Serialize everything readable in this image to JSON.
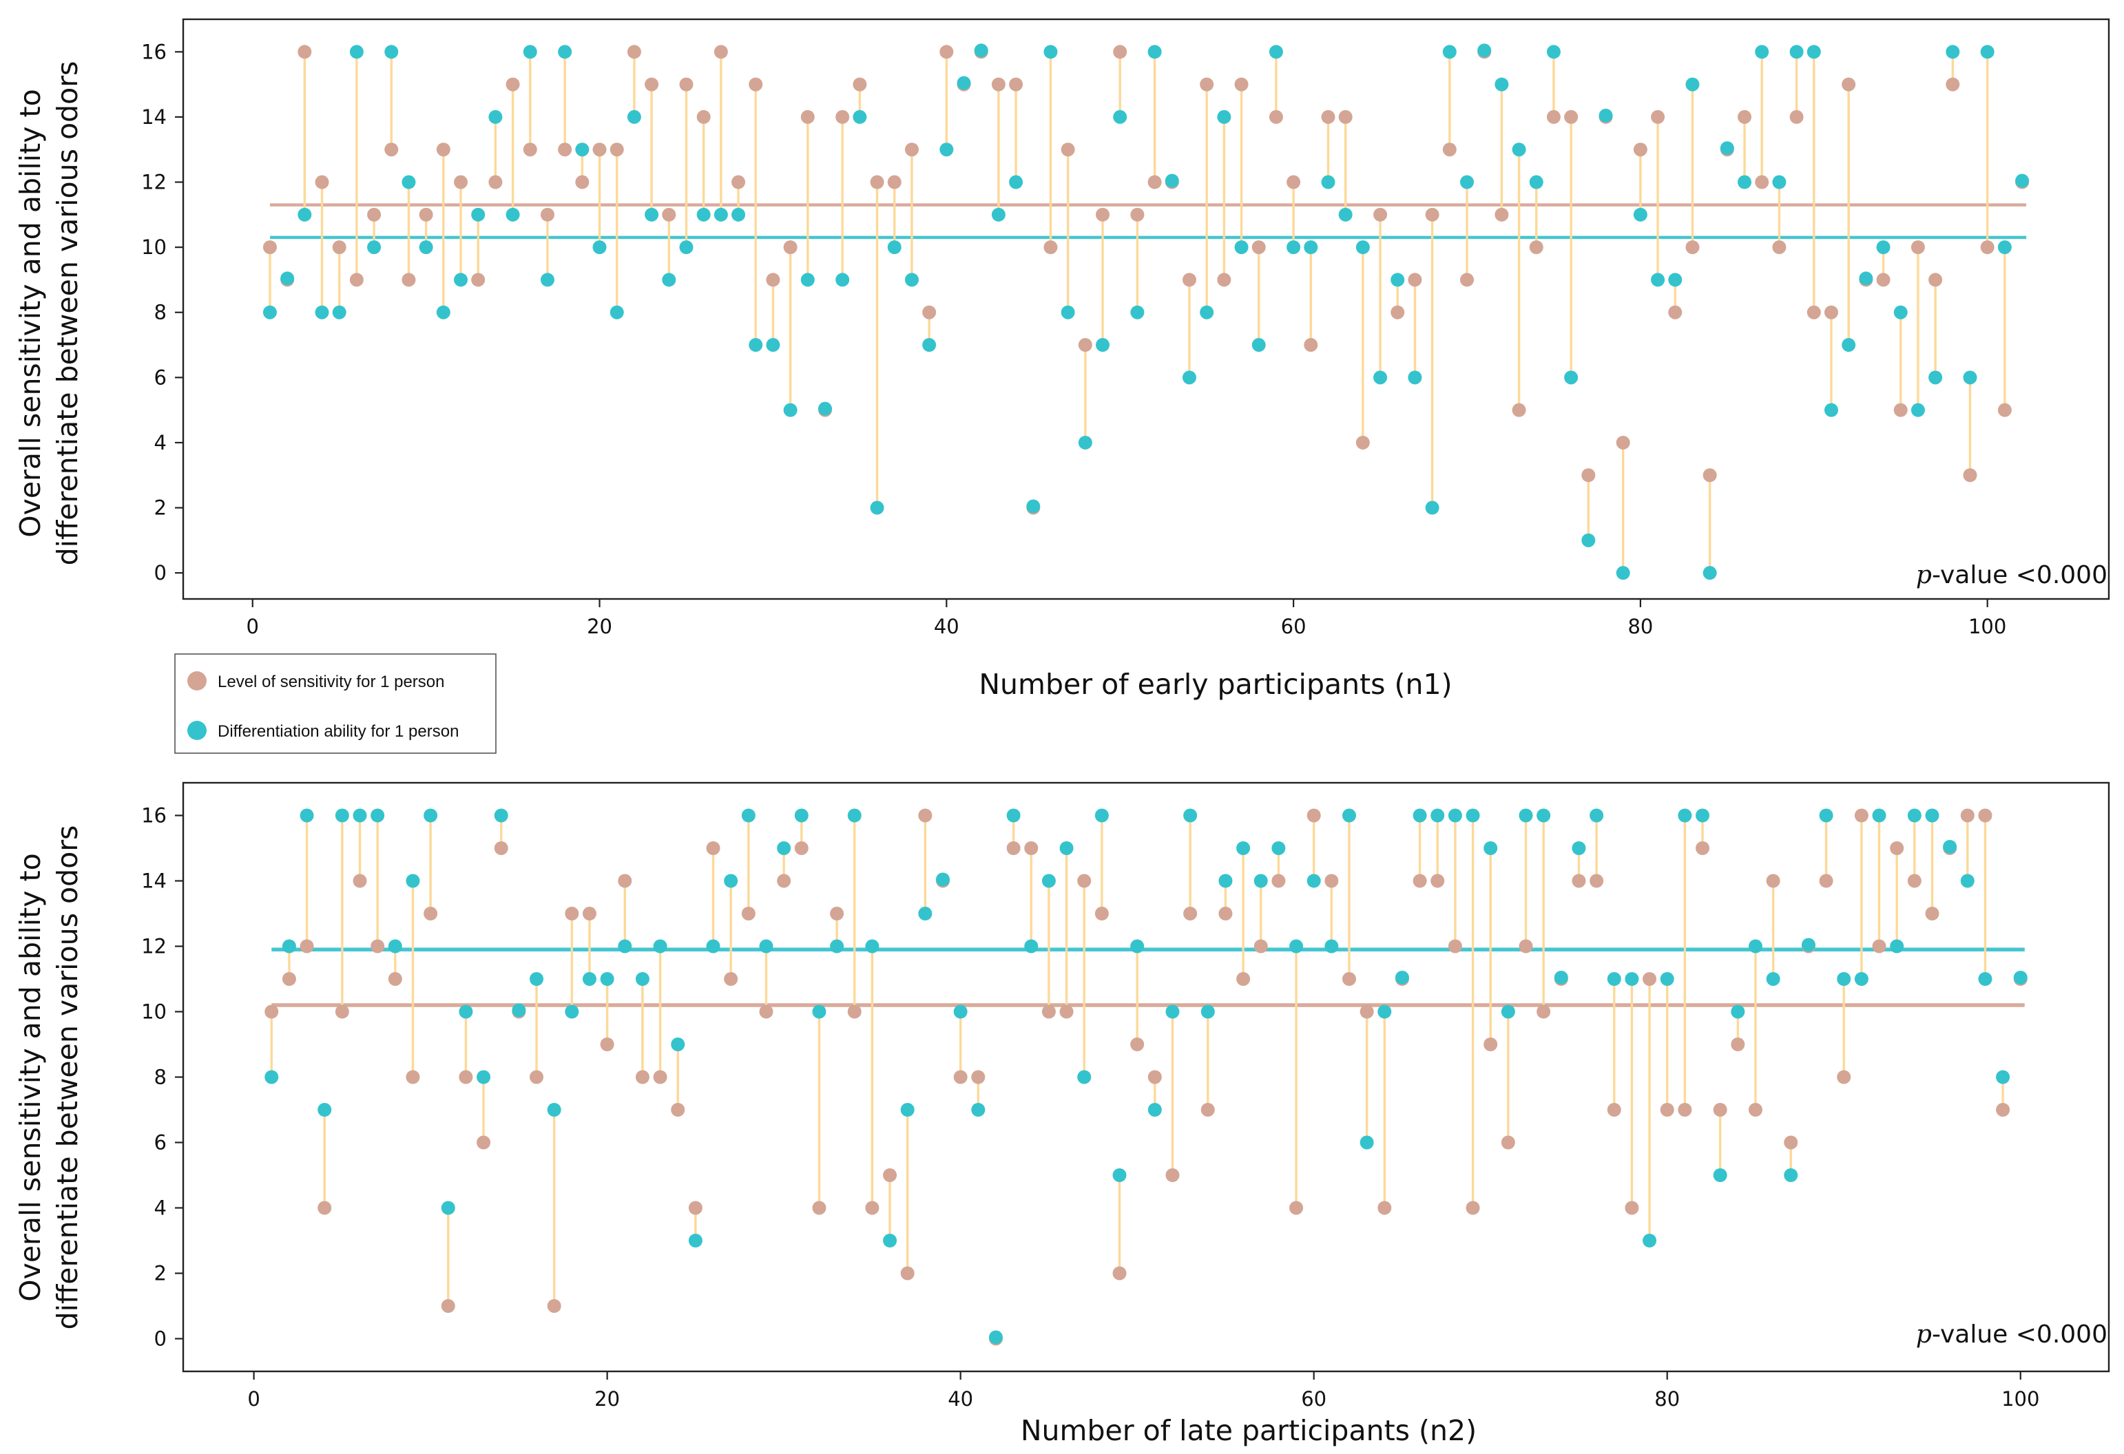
{
  "colors": {
    "sensitivity": "#d4a594",
    "differentiation": "#34c3cc",
    "stem": "#fcd999",
    "sensitivity_mean_line": "#d9aa9b",
    "differentiation_mean_line": "#44c6d0",
    "axis": "#222222"
  },
  "legend": {
    "sensitivity_label": "Level of sensitivity for 1 person",
    "differentiation_label": "Differentiation ability for 1 person"
  },
  "chart_data": [
    {
      "type": "scatter",
      "title": "",
      "xlabel": "Number of early participants (n1)",
      "ylabel_line1": "Overall sensitivity and ability to",
      "ylabel_line2": "differentiate between various odors",
      "annotation_italic": "p",
      "annotation_rest": "-value <0.000",
      "xlim": [
        -4,
        107
      ],
      "ylim": [
        -0.8,
        17
      ],
      "xticks": [
        0,
        20,
        40,
        60,
        80,
        100
      ],
      "yticks": [
        0,
        2,
        4,
        6,
        8,
        10,
        12,
        14,
        16
      ],
      "x": [
        1,
        2,
        3,
        4,
        5,
        6,
        7,
        8,
        9,
        10,
        11,
        12,
        13,
        14,
        15,
        16,
        17,
        18,
        19,
        20,
        21,
        22,
        23,
        24,
        25,
        26,
        27,
        28,
        29,
        30,
        31,
        32,
        33,
        34,
        35,
        36,
        37,
        38,
        39,
        40,
        41,
        42,
        43,
        44,
        45,
        46,
        47,
        48,
        49,
        50,
        51,
        52,
        53,
        54,
        55,
        56,
        57,
        58,
        59,
        60,
        61,
        62,
        63,
        64,
        65,
        66,
        67,
        68,
        69,
        70,
        71,
        72,
        73,
        74,
        75,
        76,
        77,
        78,
        79,
        80,
        81,
        82,
        83,
        84,
        85,
        86,
        87,
        88,
        89,
        90,
        91,
        92,
        93,
        94,
        95,
        96,
        97,
        98,
        99,
        100,
        101,
        102
      ],
      "series": [
        {
          "name": "Level of sensitivity for 1 person",
          "values": [
            10,
            9,
            16,
            12,
            10,
            9,
            11,
            13,
            9,
            11,
            13,
            12,
            9,
            12,
            15,
            13,
            11,
            13,
            12,
            13,
            13,
            16,
            15,
            11,
            15,
            14,
            16,
            12,
            15,
            9,
            10,
            14,
            5,
            14,
            15,
            12,
            12,
            13,
            8,
            16,
            15,
            16,
            15,
            15,
            2,
            10,
            13,
            7,
            11,
            16,
            11,
            12,
            12,
            9,
            15,
            9,
            15,
            10,
            14,
            12,
            7,
            14,
            14,
            4,
            11,
            8,
            9,
            11,
            13,
            9,
            16,
            11,
            5,
            10,
            14,
            14,
            3,
            14,
            4,
            13,
            14,
            8,
            10,
            3,
            13,
            14,
            12,
            10,
            14,
            8,
            8,
            15,
            9,
            9,
            5,
            10,
            9,
            15,
            3,
            10,
            5,
            12
          ]
        },
        {
          "name": "Differentiation ability for 1 person",
          "values": [
            8,
            9,
            11,
            8,
            8,
            16,
            10,
            16,
            12,
            10,
            8,
            9,
            11,
            14,
            11,
            16,
            9,
            16,
            13,
            10,
            8,
            14,
            11,
            9,
            10,
            11,
            11,
            11,
            7,
            7,
            5,
            9,
            5,
            9,
            14,
            2,
            10,
            9,
            7,
            13,
            15,
            16,
            11,
            12,
            2,
            16,
            8,
            4,
            7,
            14,
            8,
            16,
            12,
            6,
            8,
            14,
            10,
            7,
            16,
            10,
            10,
            12,
            11,
            10,
            6,
            9,
            6,
            2,
            16,
            12,
            16,
            15,
            13,
            12,
            16,
            6,
            1,
            14,
            0,
            11,
            9,
            9,
            15,
            0,
            13,
            12,
            16,
            12,
            16,
            16,
            5,
            7,
            9,
            10,
            8,
            5,
            6,
            16,
            6,
            16,
            10,
            12
          ]
        }
      ],
      "mean_lines": {
        "sensitivity": 11.3,
        "differentiation": 10.3
      }
    },
    {
      "type": "scatter",
      "title": "",
      "xlabel": "Number of late participants (n2)",
      "ylabel_line1": "Overall sensitivity and ability to",
      "ylabel_line2": "differentiate between various odors",
      "annotation_italic": "p",
      "annotation_rest": "-value <0.000",
      "xlim": [
        -4,
        105
      ],
      "ylim": [
        -1,
        17
      ],
      "xticks": [
        0,
        20,
        40,
        60,
        80,
        100
      ],
      "yticks": [
        0,
        2,
        4,
        6,
        8,
        10,
        12,
        14,
        16
      ],
      "x": [
        1,
        2,
        3,
        4,
        5,
        6,
        7,
        8,
        9,
        10,
        11,
        12,
        13,
        14,
        15,
        16,
        17,
        18,
        19,
        20,
        21,
        22,
        23,
        24,
        25,
        26,
        27,
        28,
        29,
        30,
        31,
        32,
        33,
        34,
        35,
        36,
        37,
        38,
        39,
        40,
        41,
        42,
        43,
        44,
        45,
        46,
        47,
        48,
        49,
        50,
        51,
        52,
        53,
        54,
        55,
        56,
        57,
        58,
        59,
        60,
        61,
        62,
        63,
        64,
        65,
        66,
        67,
        68,
        69,
        70,
        71,
        72,
        73,
        74,
        75,
        76,
        77,
        78,
        79,
        80,
        81,
        82,
        83,
        84,
        85,
        86,
        87,
        88,
        89,
        90,
        91,
        92,
        93,
        94,
        95,
        96,
        97,
        98,
        99,
        100
      ],
      "series": [
        {
          "name": "Level of sensitivity for 1 person",
          "values": [
            10,
            11,
            12,
            4,
            10,
            14,
            12,
            11,
            8,
            13,
            1,
            8,
            6,
            15,
            10,
            8,
            1,
            13,
            13,
            9,
            14,
            8,
            8,
            7,
            4,
            15,
            11,
            13,
            10,
            14,
            15,
            4,
            13,
            10,
            4,
            5,
            2,
            16,
            14,
            8,
            8,
            0,
            15,
            15,
            10,
            10,
            14,
            13,
            2,
            9,
            8,
            5,
            13,
            7,
            13,
            11,
            12,
            14,
            4,
            16,
            14,
            11,
            10,
            4,
            11,
            14,
            14,
            12,
            4,
            9,
            6,
            12,
            10,
            11,
            14,
            14,
            7,
            4,
            11,
            7,
            7,
            15,
            7,
            9,
            7,
            14,
            6,
            12,
            14,
            8,
            16,
            12,
            15,
            14,
            13,
            15,
            16,
            16,
            7,
            11
          ]
        },
        {
          "name": "Differentiation ability for 1 person",
          "values": [
            8,
            12,
            16,
            7,
            16,
            16,
            16,
            12,
            14,
            16,
            4,
            10,
            8,
            16,
            10,
            11,
            7,
            10,
            11,
            11,
            12,
            11,
            12,
            9,
            3,
            12,
            14,
            16,
            12,
            15,
            16,
            10,
            12,
            16,
            12,
            3,
            7,
            13,
            14,
            10,
            7,
            0,
            16,
            12,
            14,
            15,
            8,
            16,
            5,
            12,
            7,
            10,
            16,
            10,
            14,
            15,
            14,
            15,
            12,
            14,
            12,
            16,
            6,
            10,
            11,
            16,
            16,
            16,
            16,
            15,
            10,
            16,
            16,
            11,
            15,
            16,
            11,
            11,
            3,
            11,
            16,
            16,
            5,
            10,
            12,
            11,
            5,
            12,
            16,
            11,
            11,
            16,
            12,
            16,
            16,
            15,
            14,
            11,
            8,
            11
          ]
        }
      ],
      "mean_lines": {
        "sensitivity": 10.2,
        "differentiation": 11.9
      }
    }
  ]
}
